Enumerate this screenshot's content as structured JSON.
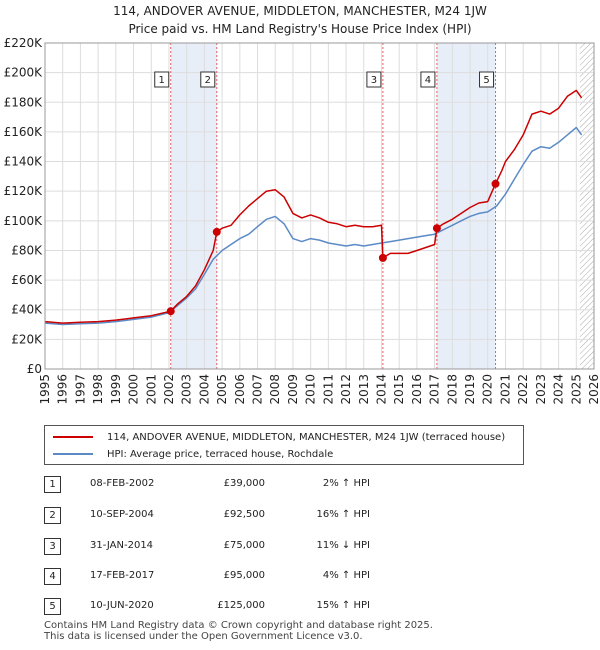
{
  "header": {
    "title_line1": "114, ANDOVER AVENUE, MIDDLETON, MANCHESTER, M24 1JW",
    "title_line2": "Price paid vs. HM Land Registry's House Price Index (HPI)"
  },
  "colors": {
    "property_line": "#cc0000",
    "hpi_line": "#5b8ac6",
    "sale_band": "#e8eef8",
    "marker_line": "#e06060",
    "grid": "#dddddd",
    "future_hatch": "#aaaaaa"
  },
  "chart_data": {
    "type": "line",
    "title": "Price paid vs. HM Land Registry's House Price Index (HPI)",
    "xlabel": "",
    "ylabel": "",
    "xlim": [
      1995,
      2026
    ],
    "ylim": [
      0,
      220000
    ],
    "x_ticks": [
      "1995",
      "1996",
      "1997",
      "1998",
      "1999",
      "2000",
      "2001",
      "2002",
      "2003",
      "2004",
      "2005",
      "2006",
      "2007",
      "2008",
      "2009",
      "2010",
      "2011",
      "2012",
      "2013",
      "2014",
      "2015",
      "2016",
      "2017",
      "2018",
      "2019",
      "2020",
      "2021",
      "2022",
      "2023",
      "2024",
      "2025",
      "2026"
    ],
    "y_ticks": [
      {
        "value": 0,
        "label": "£0"
      },
      {
        "value": 20000,
        "label": "£20K"
      },
      {
        "value": 40000,
        "label": "£40K"
      },
      {
        "value": 60000,
        "label": "£60K"
      },
      {
        "value": 80000,
        "label": "£80K"
      },
      {
        "value": 100000,
        "label": "£100K"
      },
      {
        "value": 120000,
        "label": "£120K"
      },
      {
        "value": 140000,
        "label": "£140K"
      },
      {
        "value": 160000,
        "label": "£160K"
      },
      {
        "value": 180000,
        "label": "£180K"
      },
      {
        "value": 200000,
        "label": "£200K"
      },
      {
        "value": 220000,
        "label": "£220K"
      }
    ],
    "grid": true,
    "future_from": 2025.2,
    "series": [
      {
        "name": "114, ANDOVER AVENUE, MIDDLETON, MANCHESTER, M24 1JW (terraced house)",
        "color": "#cc0000",
        "points": [
          [
            1995,
            32000
          ],
          [
            1996,
            31000
          ],
          [
            1997,
            31500
          ],
          [
            1998,
            32000
          ],
          [
            1999,
            33000
          ],
          [
            2000,
            34500
          ],
          [
            2001,
            36000
          ],
          [
            2002.1,
            39000
          ],
          [
            2002.5,
            44000
          ],
          [
            2003,
            49000
          ],
          [
            2003.5,
            56000
          ],
          [
            2004,
            67000
          ],
          [
            2004.5,
            80000
          ],
          [
            2004.7,
            92500
          ],
          [
            2005,
            95000
          ],
          [
            2005.5,
            97000
          ],
          [
            2006,
            104000
          ],
          [
            2006.5,
            110000
          ],
          [
            2007,
            115000
          ],
          [
            2007.5,
            120000
          ],
          [
            2008,
            121000
          ],
          [
            2008.5,
            116000
          ],
          [
            2009,
            105000
          ],
          [
            2009.5,
            102000
          ],
          [
            2010,
            104000
          ],
          [
            2010.5,
            102000
          ],
          [
            2011,
            99000
          ],
          [
            2011.5,
            98000
          ],
          [
            2012,
            96000
          ],
          [
            2012.5,
            97000
          ],
          [
            2013,
            96000
          ],
          [
            2013.5,
            96000
          ],
          [
            2014.0,
            97000
          ],
          [
            2014.08,
            75000
          ],
          [
            2014.5,
            78000
          ],
          [
            2015,
            78000
          ],
          [
            2015.5,
            78000
          ],
          [
            2016,
            80000
          ],
          [
            2016.5,
            82000
          ],
          [
            2017.0,
            84000
          ],
          [
            2017.13,
            95000
          ],
          [
            2017.5,
            98000
          ],
          [
            2018,
            101000
          ],
          [
            2018.5,
            105000
          ],
          [
            2019,
            109000
          ],
          [
            2019.5,
            112000
          ],
          [
            2020.0,
            113000
          ],
          [
            2020.44,
            125000
          ],
          [
            2020.8,
            134000
          ],
          [
            2021,
            140000
          ],
          [
            2021.5,
            148000
          ],
          [
            2022,
            158000
          ],
          [
            2022.5,
            172000
          ],
          [
            2023,
            174000
          ],
          [
            2023.5,
            172000
          ],
          [
            2024,
            176000
          ],
          [
            2024.5,
            184000
          ],
          [
            2025,
            188000
          ],
          [
            2025.3,
            183000
          ]
        ]
      },
      {
        "name": "HPI: Average price, terraced house, Rochdale",
        "color": "#5b8ac6",
        "points": [
          [
            1995,
            31000
          ],
          [
            1996,
            30000
          ],
          [
            1997,
            30500
          ],
          [
            1998,
            31000
          ],
          [
            1999,
            32000
          ],
          [
            2000,
            33500
          ],
          [
            2001,
            35000
          ],
          [
            2002,
            38000
          ],
          [
            2002.5,
            43000
          ],
          [
            2003,
            48000
          ],
          [
            2003.5,
            54000
          ],
          [
            2004,
            64000
          ],
          [
            2004.5,
            74000
          ],
          [
            2005,
            80000
          ],
          [
            2005.5,
            84000
          ],
          [
            2006,
            88000
          ],
          [
            2006.5,
            91000
          ],
          [
            2007,
            96000
          ],
          [
            2007.5,
            101000
          ],
          [
            2008,
            103000
          ],
          [
            2008.5,
            98000
          ],
          [
            2009,
            88000
          ],
          [
            2009.5,
            86000
          ],
          [
            2010,
            88000
          ],
          [
            2010.5,
            87000
          ],
          [
            2011,
            85000
          ],
          [
            2011.5,
            84000
          ],
          [
            2012,
            83000
          ],
          [
            2012.5,
            84000
          ],
          [
            2013,
            83000
          ],
          [
            2013.5,
            84000
          ],
          [
            2014,
            85000
          ],
          [
            2014.5,
            86000
          ],
          [
            2015,
            87000
          ],
          [
            2015.5,
            88000
          ],
          [
            2016,
            89000
          ],
          [
            2016.5,
            90000
          ],
          [
            2017,
            91000
          ],
          [
            2017.5,
            94000
          ],
          [
            2018,
            97000
          ],
          [
            2018.5,
            100000
          ],
          [
            2019,
            103000
          ],
          [
            2019.5,
            105000
          ],
          [
            2020,
            106000
          ],
          [
            2020.5,
            110000
          ],
          [
            2021,
            118000
          ],
          [
            2021.5,
            128000
          ],
          [
            2022,
            138000
          ],
          [
            2022.5,
            147000
          ],
          [
            2023,
            150000
          ],
          [
            2023.5,
            149000
          ],
          [
            2024,
            153000
          ],
          [
            2024.5,
            158000
          ],
          [
            2025,
            163000
          ],
          [
            2025.3,
            158000
          ]
        ]
      }
    ],
    "sales": [
      {
        "n": "1",
        "x": 2002.1,
        "price": 39000
      },
      {
        "n": "2",
        "x": 2004.7,
        "price": 92500
      },
      {
        "n": "3",
        "x": 2014.08,
        "price": 75000
      },
      {
        "n": "4",
        "x": 2017.13,
        "price": 95000
      },
      {
        "n": "5",
        "x": 2020.44,
        "price": 125000
      }
    ]
  },
  "legend": {
    "property_label": "114, ANDOVER AVENUE, MIDDLETON, MANCHESTER, M24 1JW (terraced house)",
    "hpi_label": "HPI: Average price, terraced house, Rochdale"
  },
  "transactions": [
    {
      "n": "1",
      "date": "08-FEB-2002",
      "price": "£39,000",
      "hpi": "2% ↑ HPI"
    },
    {
      "n": "2",
      "date": "10-SEP-2004",
      "price": "£92,500",
      "hpi": "16% ↑ HPI"
    },
    {
      "n": "3",
      "date": "31-JAN-2014",
      "price": "£75,000",
      "hpi": "11% ↓ HPI"
    },
    {
      "n": "4",
      "date": "17-FEB-2017",
      "price": "£95,000",
      "hpi": "4% ↑ HPI"
    },
    {
      "n": "5",
      "date": "10-JUN-2020",
      "price": "£125,000",
      "hpi": "15% ↑ HPI"
    }
  ],
  "footer": {
    "line1": "Contains HM Land Registry data © Crown copyright and database right 2025.",
    "line2": "This data is licensed under the Open Government Licence v3.0."
  }
}
